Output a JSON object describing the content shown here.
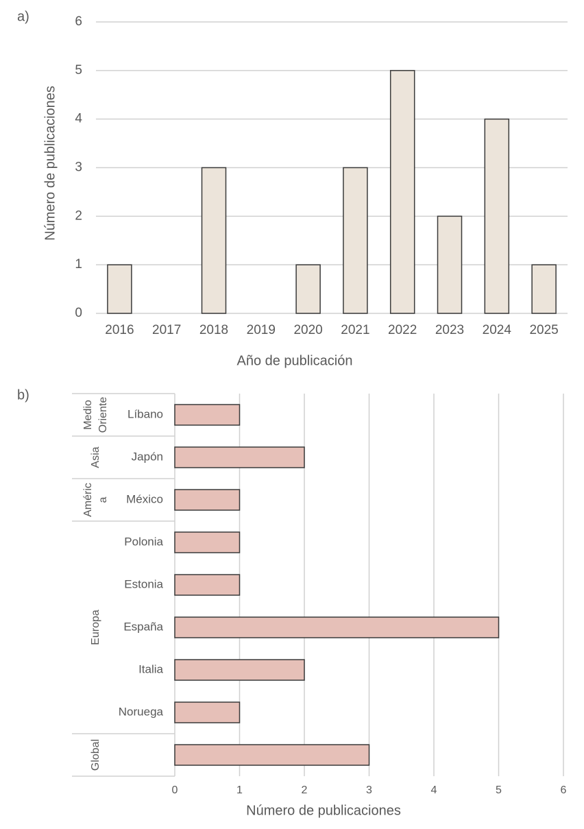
{
  "chart_data": [
    {
      "type": "bar",
      "panel_label": "a)",
      "x_label": "Año de publicación",
      "y_label": "Número de publicaciones",
      "categories": [
        "2016",
        "2017",
        "2018",
        "2019",
        "2020",
        "2021",
        "2022",
        "2023",
        "2024",
        "2025"
      ],
      "values": [
        1,
        0,
        3,
        0,
        1,
        3,
        5,
        2,
        4,
        1
      ],
      "color": "#ece4da",
      "ylim": [
        0,
        6
      ],
      "yticks": [
        0,
        1,
        2,
        3,
        4,
        5,
        6
      ],
      "grid": true
    },
    {
      "type": "hbar",
      "panel_label": "b)",
      "x_label": "Número de publicaciones",
      "color": "#e6c0b8",
      "groups": [
        {
          "name": [
            "Medio",
            "Oriente"
          ],
          "categories": [
            "Líbano"
          ],
          "values": [
            1
          ]
        },
        {
          "name": [
            "Asia"
          ],
          "categories": [
            "Japón"
          ],
          "values": [
            2
          ]
        },
        {
          "name": [
            "Améric",
            "a"
          ],
          "categories": [
            "México"
          ],
          "values": [
            1
          ]
        },
        {
          "name": [
            "Europa"
          ],
          "categories": [
            "Polonia",
            "Estonia",
            "España",
            "Italia",
            "Noruega"
          ],
          "values": [
            1,
            1,
            5,
            2,
            1
          ]
        },
        {
          "name": [
            "Global"
          ],
          "categories": [
            null
          ],
          "values": [
            3
          ]
        }
      ],
      "xlim": [
        0,
        6
      ],
      "xticks": [
        0,
        1,
        2,
        3,
        4,
        5,
        6
      ],
      "grid": true
    }
  ]
}
